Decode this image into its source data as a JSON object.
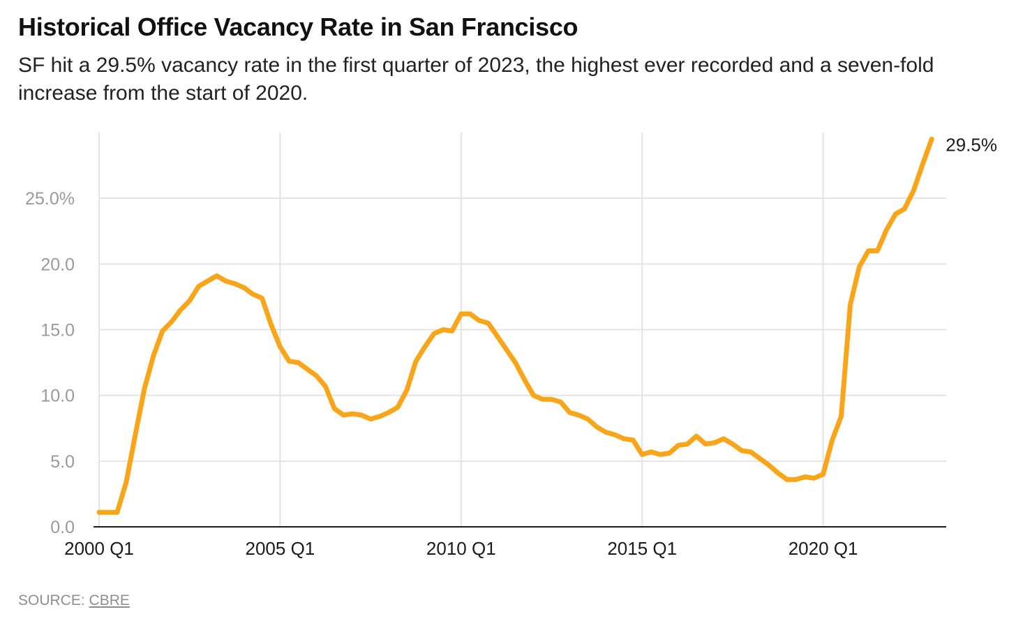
{
  "chart_data": {
    "type": "line",
    "title": "Historical Office Vacancy Rate in San Francisco",
    "subtitle": "SF hit a 29.5% vacancy rate in the first quarter of 2023, the highest ever recorded and a seven-fold increase from the start of 2020.",
    "xlabel": "",
    "ylabel": "",
    "ylim": [
      0,
      30
    ],
    "y_ticks": [
      0,
      5,
      10,
      15,
      20,
      25
    ],
    "y_tick_labels": [
      "0.0",
      "5.0",
      "10.0",
      "15.0",
      "20.0",
      "25.0%"
    ],
    "x_ticks": [
      "2000 Q1",
      "2005 Q1",
      "2010 Q1",
      "2015 Q1",
      "2020 Q1"
    ],
    "grid": true,
    "line_color": "#f9a51a",
    "end_label": "29.5%",
    "series": [
      {
        "x": [
          "2000 Q1",
          "2000 Q2",
          "2000 Q3",
          "2000 Q4",
          "2001 Q1",
          "2001 Q2",
          "2001 Q3",
          "2001 Q4",
          "2002 Q1",
          "2002 Q2",
          "2002 Q3",
          "2002 Q4",
          "2003 Q1",
          "2003 Q2",
          "2003 Q3",
          "2003 Q4",
          "2004 Q1",
          "2004 Q2",
          "2004 Q3",
          "2004 Q4",
          "2005 Q1",
          "2005 Q2",
          "2005 Q3",
          "2005 Q4",
          "2006 Q1",
          "2006 Q2",
          "2006 Q3",
          "2006 Q4",
          "2007 Q1",
          "2007 Q2",
          "2007 Q3",
          "2007 Q4",
          "2008 Q1",
          "2008 Q2",
          "2008 Q3",
          "2008 Q4",
          "2009 Q1",
          "2009 Q2",
          "2009 Q3",
          "2009 Q4",
          "2010 Q1",
          "2010 Q2",
          "2010 Q3",
          "2010 Q4",
          "2011 Q1",
          "2011 Q2",
          "2011 Q3",
          "2011 Q4",
          "2012 Q1",
          "2012 Q2",
          "2012 Q3",
          "2012 Q4",
          "2013 Q1",
          "2013 Q2",
          "2013 Q3",
          "2013 Q4",
          "2014 Q1",
          "2014 Q2",
          "2014 Q3",
          "2014 Q4",
          "2015 Q1",
          "2015 Q2",
          "2015 Q3",
          "2015 Q4",
          "2016 Q1",
          "2016 Q2",
          "2016 Q3",
          "2016 Q4",
          "2017 Q1",
          "2017 Q2",
          "2017 Q3",
          "2017 Q4",
          "2018 Q1",
          "2018 Q2",
          "2018 Q3",
          "2018 Q4",
          "2019 Q1",
          "2019 Q2",
          "2019 Q3",
          "2019 Q4",
          "2020 Q1",
          "2020 Q2",
          "2020 Q3",
          "2020 Q4",
          "2021 Q1",
          "2021 Q2",
          "2021 Q3",
          "2021 Q4",
          "2022 Q1",
          "2022 Q2",
          "2022 Q3",
          "2022 Q4",
          "2023 Q1"
        ],
        "values": [
          1.1,
          1.1,
          1.1,
          3.4,
          7.0,
          10.5,
          13.0,
          14.9,
          15.6,
          16.5,
          17.2,
          18.3,
          18.7,
          19.1,
          18.7,
          18.5,
          18.2,
          17.7,
          17.4,
          15.4,
          13.7,
          12.6,
          12.5,
          12.0,
          11.5,
          10.7,
          9.0,
          8.5,
          8.6,
          8.5,
          8.2,
          8.4,
          8.7,
          9.1,
          10.4,
          12.6,
          13.7,
          14.7,
          15.0,
          14.9,
          16.2,
          16.2,
          15.7,
          15.5,
          14.5,
          13.5,
          12.5,
          11.2,
          10.0,
          9.7,
          9.7,
          9.5,
          8.7,
          8.5,
          8.2,
          7.6,
          7.2,
          7.0,
          6.7,
          6.6,
          5.5,
          5.7,
          5.5,
          5.6,
          6.2,
          6.3,
          6.9,
          6.3,
          6.4,
          6.7,
          6.3,
          5.8,
          5.7,
          5.2,
          4.7,
          4.1,
          3.6,
          3.6,
          3.8,
          3.7,
          4.0,
          6.6,
          8.4,
          16.9,
          19.8,
          21.0,
          21.0,
          22.6,
          23.8,
          24.2,
          25.6,
          27.6,
          29.5
        ]
      }
    ]
  },
  "source": {
    "label": "SOURCE:",
    "link": "CBRE"
  }
}
